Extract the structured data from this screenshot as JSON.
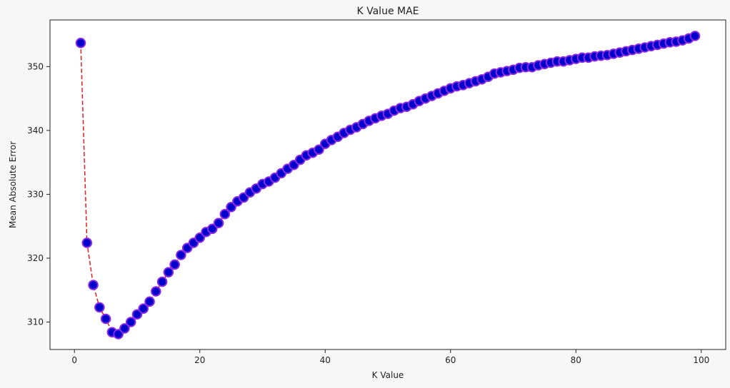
{
  "chart_data": {
    "type": "line",
    "title": "K Value MAE",
    "xlabel": "K Value",
    "ylabel": "Mean Absolute Error",
    "xlim": [
      -3.9,
      103.9
    ],
    "ylim": [
      305.7,
      357.3
    ],
    "xticks": [
      0,
      20,
      40,
      60,
      80,
      100
    ],
    "yticks": [
      310,
      320,
      330,
      340,
      350
    ],
    "grid": false,
    "line_color": "#e02020",
    "line_style": "dashed",
    "marker_face": "#0000cc",
    "marker_edge": "#8a2be2",
    "series": [
      {
        "x": [
          1,
          2,
          3,
          4,
          5,
          6,
          7,
          8,
          9,
          10,
          11,
          12,
          13,
          14,
          15,
          16,
          17,
          18,
          19,
          20,
          21,
          22,
          23,
          24,
          25,
          26,
          27,
          28,
          29,
          30,
          31,
          32,
          33,
          34,
          35,
          36,
          37,
          38,
          39,
          40,
          41,
          42,
          43,
          44,
          45,
          46,
          47,
          48,
          49,
          50,
          51,
          52,
          53,
          54,
          55,
          56,
          57,
          58,
          59,
          60,
          61,
          62,
          63,
          64,
          65,
          66,
          67,
          68,
          69,
          70,
          71,
          72,
          73,
          74,
          75,
          76,
          77,
          78,
          79,
          80,
          81,
          82,
          83,
          84,
          85,
          86,
          87,
          88,
          89,
          90,
          91,
          92,
          93,
          94,
          95,
          96,
          97,
          98,
          99
        ],
        "values": [
          353.7,
          322.4,
          315.8,
          312.3,
          310.5,
          308.4,
          308.1,
          309.0,
          310.0,
          311.2,
          312.1,
          313.2,
          314.8,
          316.3,
          317.8,
          319.0,
          320.5,
          321.6,
          322.4,
          323.2,
          324.1,
          324.6,
          325.5,
          326.9,
          328.0,
          328.9,
          329.5,
          330.3,
          330.9,
          331.6,
          332.0,
          332.6,
          333.3,
          334.0,
          334.6,
          335.4,
          336.1,
          336.5,
          337.0,
          337.9,
          338.5,
          339.0,
          339.6,
          340.1,
          340.5,
          341.0,
          341.5,
          341.9,
          342.3,
          342.6,
          343.1,
          343.5,
          343.7,
          344.1,
          344.6,
          345.0,
          345.4,
          345.8,
          346.2,
          346.6,
          346.9,
          347.1,
          347.4,
          347.7,
          348.0,
          348.4,
          348.9,
          349.1,
          349.3,
          349.5,
          349.8,
          349.9,
          349.9,
          350.2,
          350.4,
          350.6,
          350.8,
          350.8,
          351.0,
          351.2,
          351.4,
          351.4,
          351.6,
          351.7,
          351.8,
          352.0,
          352.2,
          352.4,
          352.6,
          352.8,
          353.0,
          353.2,
          353.4,
          353.6,
          353.8,
          353.9,
          354.1,
          354.4,
          354.8
        ]
      }
    ]
  }
}
